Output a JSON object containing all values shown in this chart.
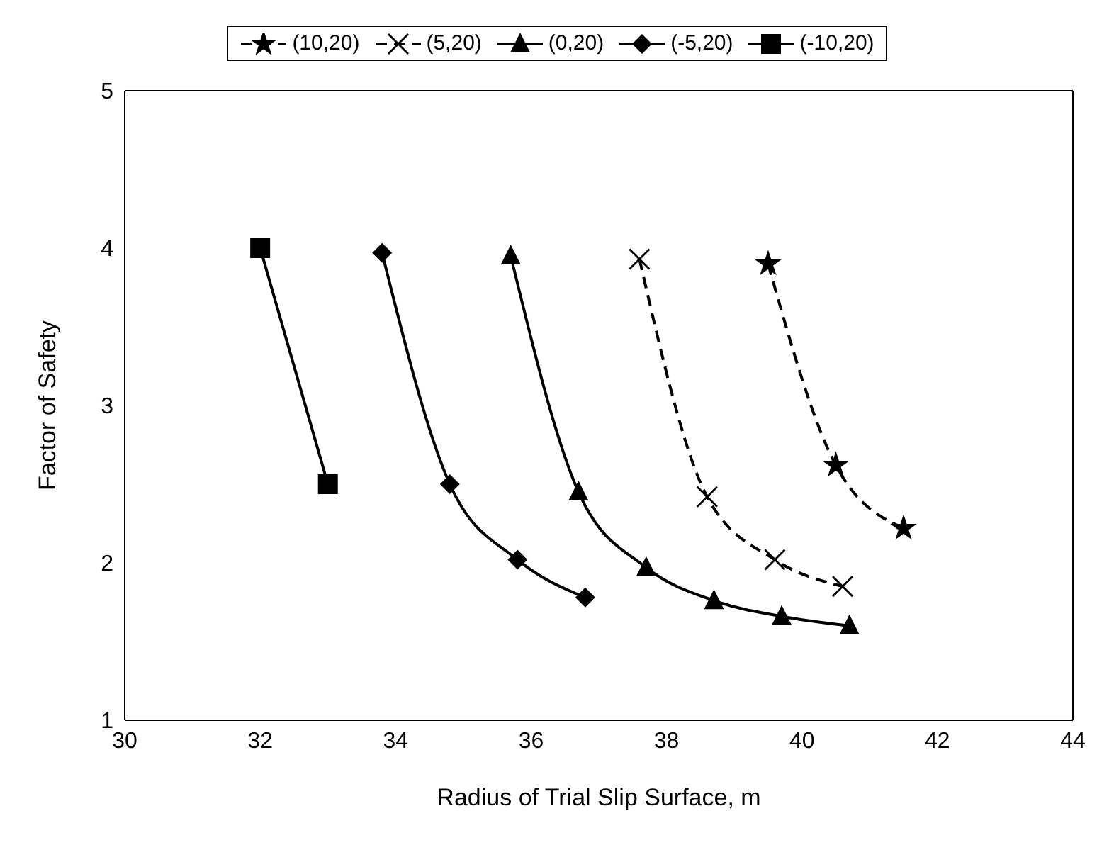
{
  "chart_data": {
    "type": "line",
    "xlabel": "Radius of Trial Slip Surface, m",
    "ylabel": "Factor of Safety",
    "xlim": [
      30,
      44
    ],
    "xticks": [
      30,
      32,
      34,
      36,
      38,
      40,
      42,
      44
    ],
    "ylim": [
      1,
      5
    ],
    "yticks": [
      1,
      2,
      3,
      4,
      5
    ],
    "grid": false,
    "legend": "top",
    "series": [
      {
        "name": "(10,20)",
        "color": "#000000",
        "marker": "star",
        "line_style": "dashed",
        "x": [
          39.5,
          40.5,
          41.5
        ],
        "values": [
          3.9,
          2.62,
          2.22
        ]
      },
      {
        "name": "(5,20)",
        "color": "#000000",
        "marker": "cross",
        "line_style": "dashed",
        "x": [
          37.6,
          38.6,
          39.6,
          40.6
        ],
        "values": [
          3.93,
          2.42,
          2.02,
          1.85
        ]
      },
      {
        "name": "(0,20)",
        "color": "#000000",
        "marker": "triangle",
        "line_style": "solid",
        "x": [
          35.7,
          36.7,
          37.7,
          38.7,
          39.7,
          40.7
        ],
        "values": [
          3.95,
          2.45,
          1.97,
          1.76,
          1.66,
          1.6
        ]
      },
      {
        "name": "(-5,20)",
        "color": "#000000",
        "marker": "diamond",
        "line_style": "solid",
        "x": [
          33.8,
          34.8,
          35.8,
          36.8
        ],
        "values": [
          3.97,
          2.5,
          2.02,
          1.78
        ]
      },
      {
        "name": "(-10,20)",
        "color": "#000000",
        "marker": "square",
        "line_style": "solid",
        "x": [
          32,
          33
        ],
        "values": [
          4,
          2.5
        ]
      }
    ]
  }
}
